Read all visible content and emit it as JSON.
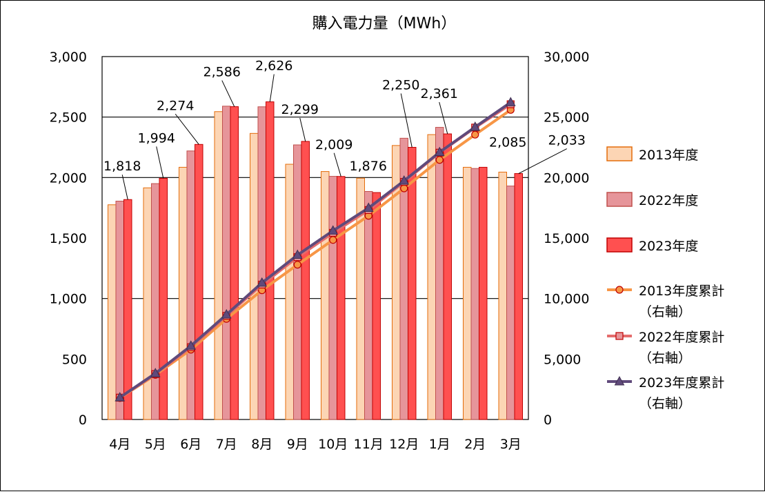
{
  "chart_data": {
    "type": "bar",
    "title": "購入電力量（MWh）",
    "categories": [
      "4月",
      "5月",
      "6月",
      "7月",
      "8月",
      "9月",
      "10月",
      "11月",
      "12月",
      "1月",
      "2月",
      "3月"
    ],
    "y_left": {
      "min": 0,
      "max": 3000,
      "step": 500,
      "ticks": [
        "0",
        "500",
        "1,000",
        "1,500",
        "2,000",
        "2,500",
        "3,000"
      ]
    },
    "y_right": {
      "min": 0,
      "max": 30000,
      "step": 5000,
      "ticks": [
        "0",
        "5,000",
        "10,000",
        "15,000",
        "20,000",
        "25,000",
        "30,000"
      ]
    },
    "gridlines": [
      1000,
      2000,
      2500
    ],
    "bar_series": [
      {
        "name": "2013年度",
        "fill": "#FCD5B4",
        "stroke": "#E46C0A",
        "values": [
          1775,
          1915,
          2085,
          2545,
          2365,
          2110,
          2050,
          1995,
          2265,
          2355,
          2085,
          2045
        ]
      },
      {
        "name": "2022年度",
        "fill": "#E6959A",
        "stroke": "#C0504D",
        "values": [
          1805,
          1950,
          2220,
          2590,
          2585,
          2270,
          2010,
          1885,
          2325,
          2415,
          2075,
          1930
        ]
      },
      {
        "name": "2023年度",
        "fill": "#FF5050",
        "stroke": "#C00000",
        "values": [
          1818,
          1994,
          2274,
          2586,
          2626,
          2299,
          2009,
          1876,
          2250,
          2361,
          2085,
          2033
        ]
      }
    ],
    "line_series": [
      {
        "name": "2013年度累計",
        "axis_note": "（右軸）",
        "color": "#F79646",
        "marker": "circle",
        "marker_fill": "#F79646",
        "marker_stroke": "#C00000",
        "values": [
          1775,
          3690,
          5775,
          8320,
          10685,
          12795,
          14845,
          16840,
          19105,
          21460,
          23545,
          25590
        ]
      },
      {
        "name": "2022年度累計",
        "axis_note": "（右軸）",
        "color": "#E46C6C",
        "marker": "square",
        "marker_fill": "#E6959A",
        "marker_stroke": "#C00000",
        "values": [
          1805,
          3755,
          5975,
          8565,
          11150,
          13420,
          15430,
          17315,
          19640,
          22055,
          24130,
          26060
        ]
      },
      {
        "name": "2023年度累計",
        "axis_note": "（右軸）",
        "color": "#604A7B",
        "marker": "triangle",
        "marker_fill": "#604A7B",
        "marker_stroke": "#403151",
        "values": [
          1818,
          3812,
          6086,
          8672,
          11298,
          13597,
          15606,
          17482,
          19732,
          22093,
          24178,
          26211
        ]
      }
    ],
    "data_labels": [
      "1,818",
      "1,994",
      "2,274",
      "2,586",
      "2,626",
      "2,299",
      "2,009",
      "1,876",
      "2,250",
      "2,361",
      "2,085",
      "2,033"
    ]
  }
}
